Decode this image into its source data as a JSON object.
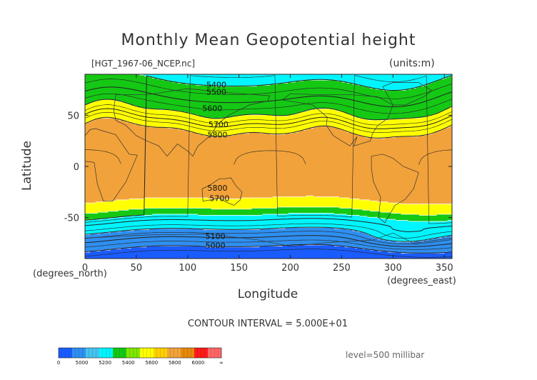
{
  "title": "Monthly Mean Geopotential height",
  "file_label": "[HGT_1967-06_NCEP.nc]",
  "units_label": "(units:m)",
  "contour_interval": "CONTOUR INTERVAL = 5.000E+01",
  "level_text": "level=500 millibar",
  "colorbar": {
    "colors": [
      "#1a5cff",
      "#2f8ff0",
      "#45c3ef",
      "#00f5ff",
      "#14c814",
      "#7fe600",
      "#ffff00",
      "#ffd000",
      "#f2a23a",
      "#e6890a",
      "#ff1a1a",
      "#ff6666"
    ],
    "labels": [
      "0",
      "5000",
      "5200",
      "5400",
      "5600",
      "5800",
      "6000",
      "∞"
    ]
  },
  "chart_data": {
    "type": "heatmap",
    "title": "Monthly Mean Geopotential height",
    "xlabel": "Longitude",
    "ylabel": "Latitude",
    "x_unit": "(degrees_east)",
    "y_unit": "(degrees_north)",
    "xlim": [
      0,
      357.5
    ],
    "ylim": [
      -90,
      90
    ],
    "x_ticks": [
      0,
      50,
      100,
      150,
      200,
      250,
      300,
      350
    ],
    "y_ticks": [
      -50,
      0,
      50
    ],
    "bands": [
      {
        "range": [
          0,
          5000
        ],
        "color": "#1a5cff"
      },
      {
        "range": [
          5000,
          5200
        ],
        "color": "#2f8ff0"
      },
      {
        "range": [
          5200,
          5400
        ],
        "color": "#00f5ff"
      },
      {
        "range": [
          5400,
          5600
        ],
        "color": "#14c814"
      },
      {
        "range": [
          5600,
          5800
        ],
        "color": "#ffff00"
      },
      {
        "range": [
          5800,
          6000
        ],
        "color": "#f2a23a"
      },
      {
        "range": [
          6000,
          99999
        ],
        "color": "#ff1a1a"
      }
    ],
    "contour_labels": [
      {
        "text": "5400",
        "lon": 128,
        "lat": 80
      },
      {
        "text": "5500",
        "lon": 128,
        "lat": 73
      },
      {
        "text": "5600",
        "lon": 124,
        "lat": 57
      },
      {
        "text": "5700",
        "lon": 130,
        "lat": 41
      },
      {
        "text": "5800",
        "lon": 129,
        "lat": 31
      },
      {
        "text": "5800",
        "lon": 129,
        "lat": -21
      },
      {
        "text": "5700",
        "lon": 131,
        "lat": -31
      },
      {
        "text": "5100",
        "lon": 127,
        "lat": -68
      },
      {
        "text": "5000",
        "lon": 127,
        "lat": -77
      }
    ]
  }
}
